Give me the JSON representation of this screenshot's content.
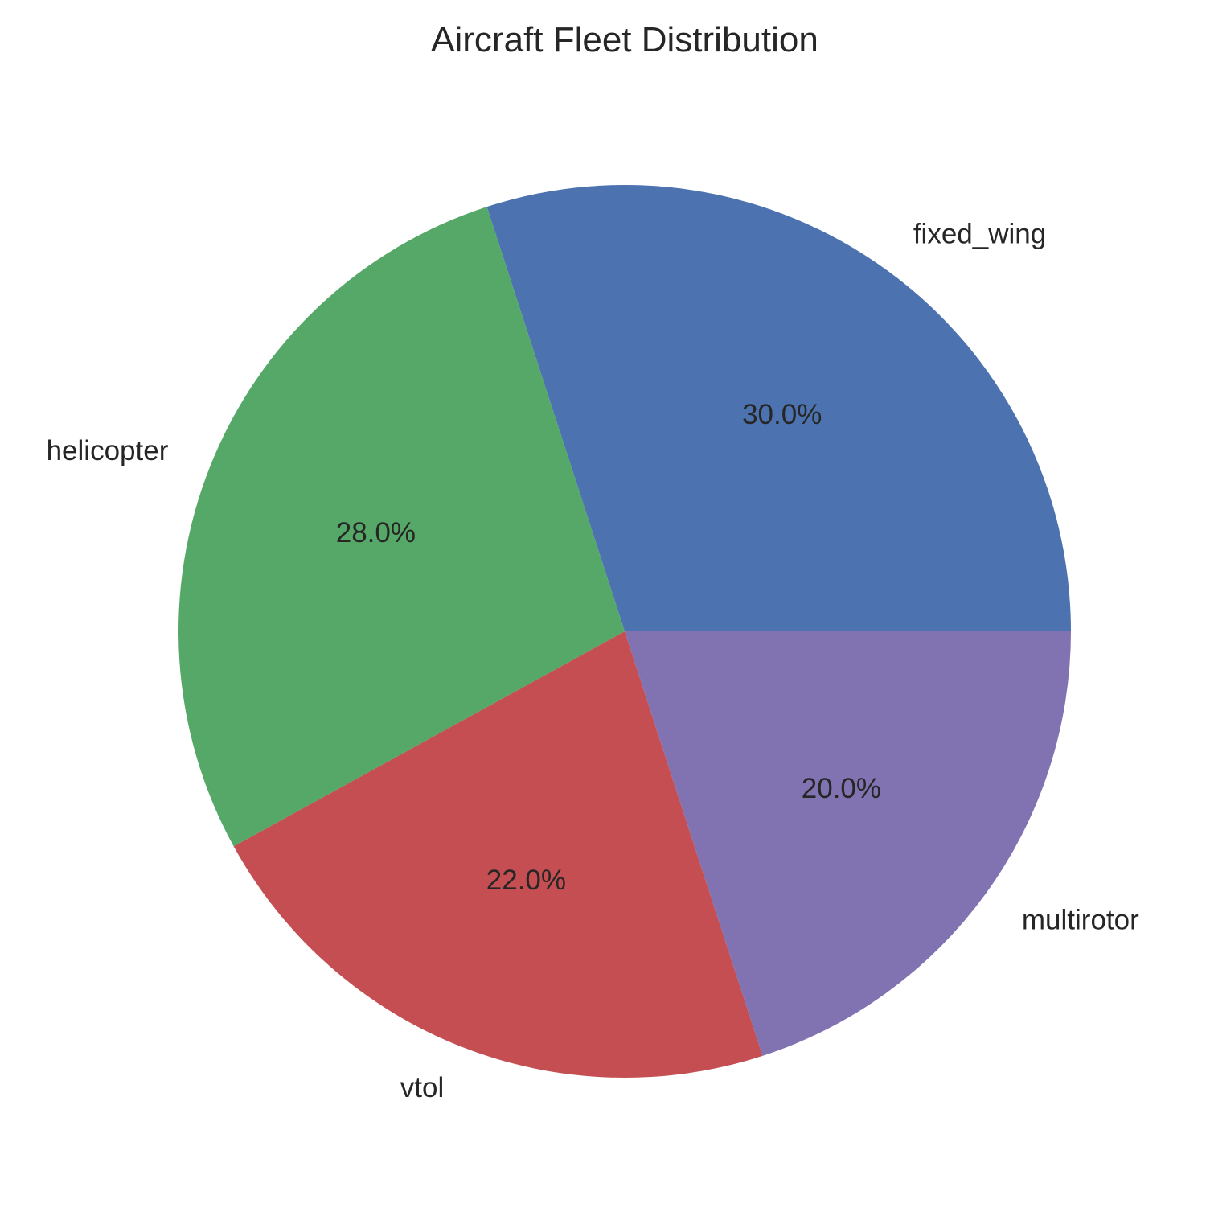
{
  "chart_data": {
    "type": "pie",
    "title": "Aircraft Fleet Distribution",
    "categories": [
      "fixed_wing",
      "helicopter",
      "vtol",
      "multirotor"
    ],
    "values": [
      30.0,
      28.0,
      22.0,
      20.0
    ],
    "percent_labels": [
      "30.0%",
      "28.0%",
      "22.0%",
      "20.0%"
    ],
    "colors": [
      "#4c72b0",
      "#55a868",
      "#c44e52",
      "#8172b2"
    ],
    "start_angle_deg": 0,
    "direction": "counterclockwise",
    "legend": "none"
  }
}
